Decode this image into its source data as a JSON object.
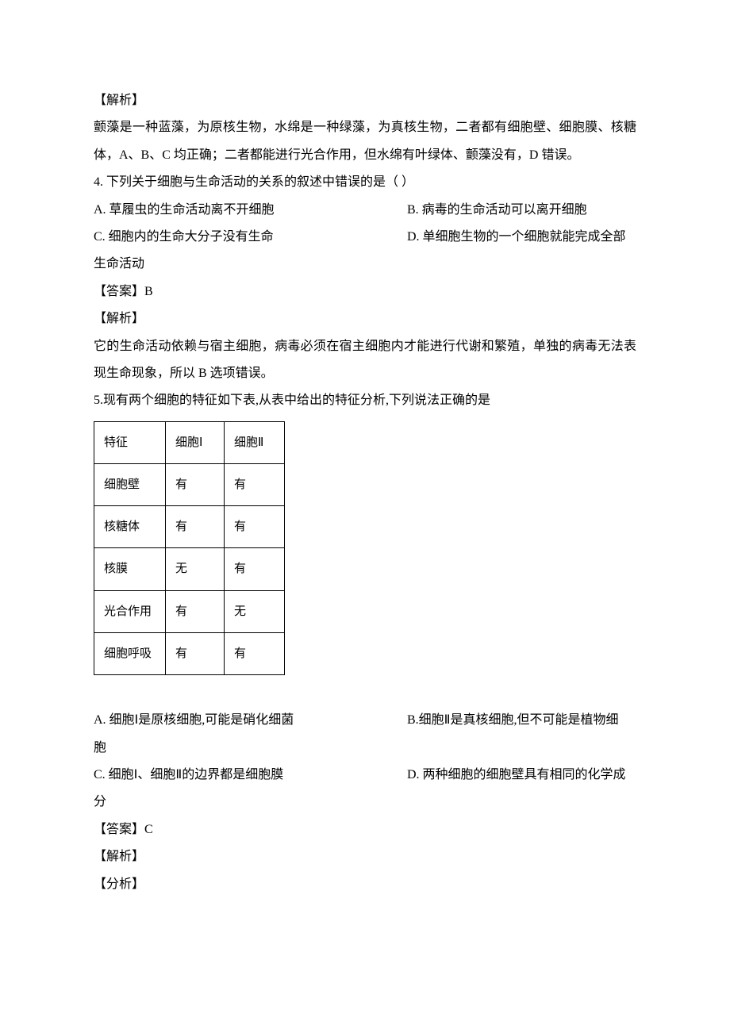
{
  "q3": {
    "analysis_label": "【解析】",
    "analysis_text": "颤藻是一种蓝藻，为原核生物，水绵是一种绿藻，为真核生物，二者都有细胞壁、细胞膜、核糖体，A、B、C 均正确；二者都能进行光合作用，但水绵有叶绿体、颤藻没有，D 错误。"
  },
  "q4": {
    "stem": "4. 下列关于细胞与生命活动的关系的叙述中错误的是（ ）",
    "optA": "A.  草履虫的生命活动离不开细胞",
    "optB": "B.  病毒的生命活动可以离开细胞",
    "optC": "C.  细胞内的生命大分子没有生命",
    "optD": "D.  单细胞生物的一个细胞就能完成全部",
    "optD_cont": "生命活动",
    "answer_label": "【答案】B",
    "analysis_label": "【解析】",
    "analysis_text": "它的生命活动依赖与宿主细胞，病毒必须在宿主细胞内才能进行代谢和繁殖，单独的病毒无法表现生命现象，所以 B 选项错误。"
  },
  "q5": {
    "stem": "5.现有两个细胞的特征如下表,从表中给出的特征分析,下列说法正确的是",
    "table": {
      "rows": [
        [
          "特征",
          "细胞Ⅰ",
          "细胞Ⅱ"
        ],
        [
          "细胞壁",
          "有",
          "有"
        ],
        [
          "核糖体",
          "有",
          "有"
        ],
        [
          "核膜",
          "无",
          "有"
        ],
        [
          "光合作用",
          "有",
          "无"
        ],
        [
          "细胞呼吸",
          "有",
          "有"
        ]
      ]
    },
    "optA": "A.  细胞Ⅰ是原核细胞,可能是硝化细菌",
    "optB": "B.细胞Ⅱ是真核细胞,但不可能是植物细",
    "optB_cont": "胞",
    "optC": "C.  细胞Ⅰ、细胞Ⅱ的边界都是细胞膜",
    "optD": "D.  两种细胞的细胞壁具有相同的化学成",
    "optD_cont": "分",
    "answer_label": "【答案】C",
    "analysis_label": "【解析】",
    "analysis2_label": "【分析】"
  }
}
